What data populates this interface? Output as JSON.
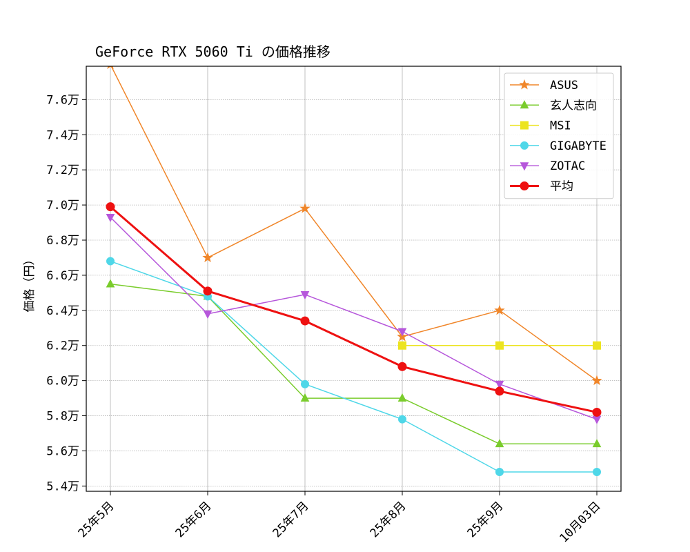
{
  "chart_data": {
    "type": "line",
    "title": "GeForce RTX 5060 Ti の価格推移",
    "xlabel": "",
    "ylabel": "価格（円）",
    "categories": [
      "25年5月",
      "25年6月",
      "25年7月",
      "25年8月",
      "25年9月",
      "10月03日"
    ],
    "ylim": [
      53700,
      77900
    ],
    "yticks": [
      54000,
      56000,
      58000,
      60000,
      62000,
      64000,
      66000,
      68000,
      70000,
      72000,
      74000,
      76000
    ],
    "ytick_labels": [
      "5.4万",
      "5.6万",
      "5.8万",
      "6.0万",
      "6.2万",
      "6.4万",
      "6.6万",
      "6.8万",
      "7.0万",
      "7.2万",
      "7.4万",
      "7.6万"
    ],
    "grid": true,
    "legend_position": "top-right",
    "series": [
      {
        "name": "ASUS",
        "color": "#f0862a",
        "marker": "star",
        "values": [
          78000,
          67000,
          69800,
          62500,
          64000,
          60000
        ]
      },
      {
        "name": "玄人志向",
        "color": "#7acc2c",
        "marker": "triangle-up",
        "values": [
          65500,
          64800,
          59000,
          59000,
          56400,
          56400
        ]
      },
      {
        "name": "MSI",
        "color": "#ece420",
        "marker": "square",
        "values": [
          null,
          null,
          null,
          62000,
          62000,
          62000
        ]
      },
      {
        "name": "GIGABYTE",
        "color": "#4fd7e8",
        "marker": "circle",
        "values": [
          66800,
          64800,
          59800,
          57800,
          54800,
          54800
        ]
      },
      {
        "name": "ZOTAC",
        "color": "#b657db",
        "marker": "triangle-down",
        "values": [
          69300,
          63800,
          64900,
          62800,
          59800,
          57800
        ]
      },
      {
        "name": "平均",
        "color": "#ee1111",
        "marker": "circle",
        "bold": true,
        "values": [
          69900,
          65100,
          63400,
          60800,
          59400,
          58200
        ]
      }
    ]
  }
}
